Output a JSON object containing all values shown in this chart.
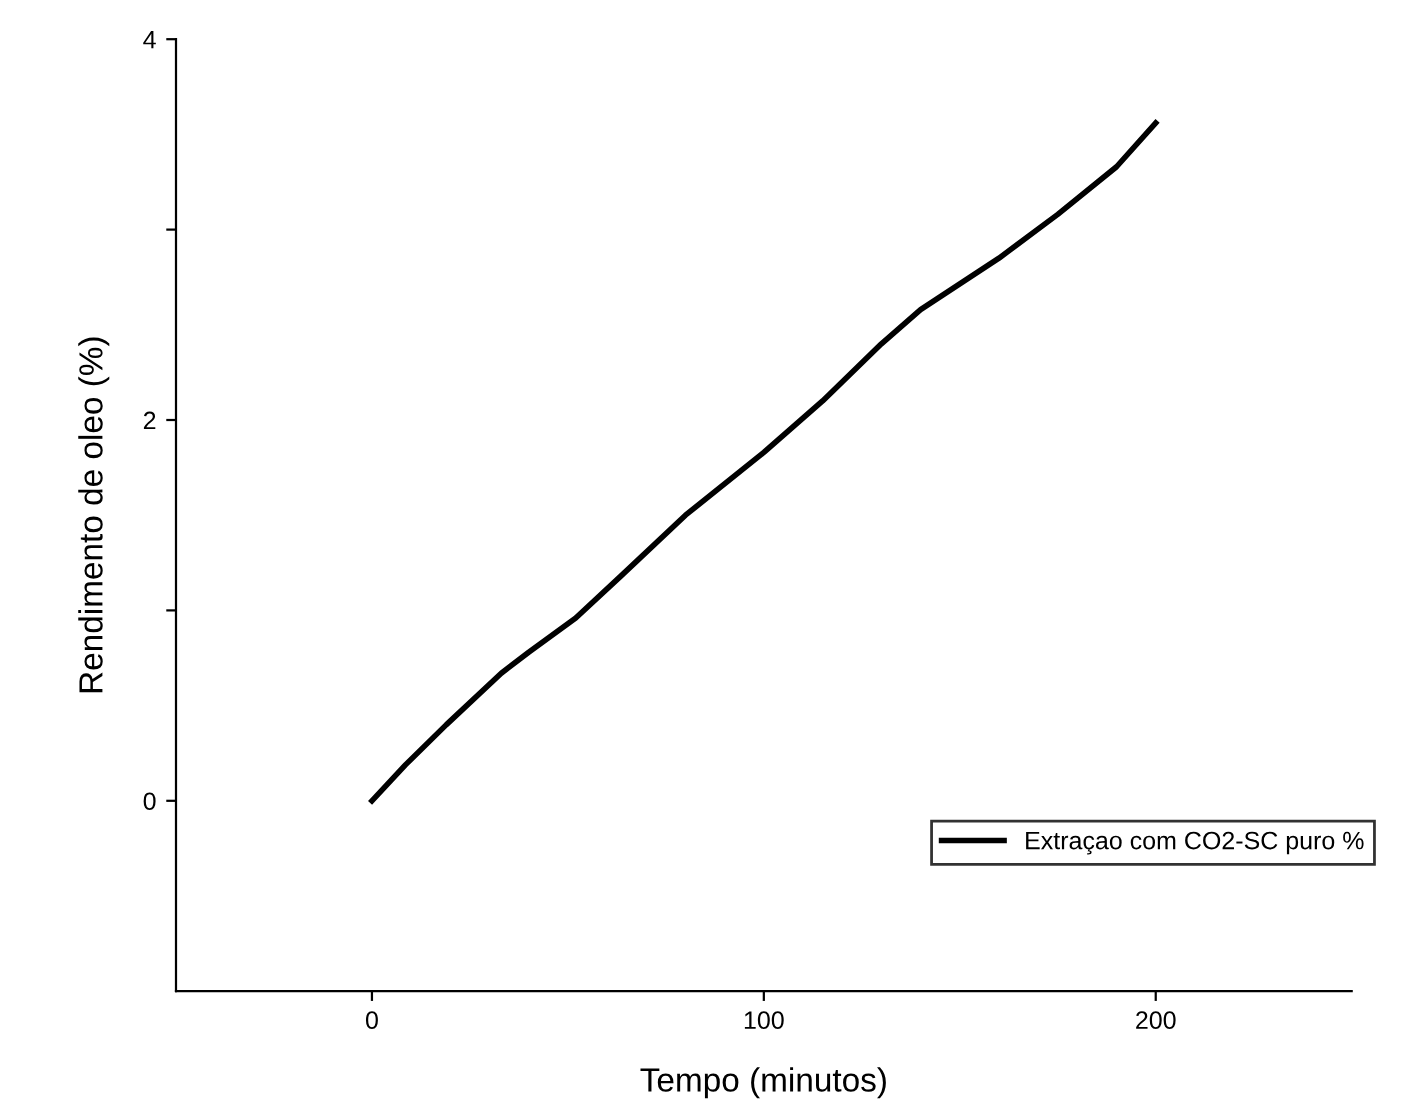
{
  "chart_data": {
    "type": "line",
    "xlabel": "Tempo (minutos)",
    "ylabel": "Rendimento de oleo (%)",
    "xlim": [
      -50,
      250
    ],
    "xticks": [
      0,
      100,
      200
    ],
    "ylim": [
      -1,
      4
    ],
    "yticks": [
      0,
      {
        "value": 1,
        "label": null
      },
      2,
      {
        "value": 3,
        "label": null
      },
      4
    ],
    "legend": "lower right",
    "marker": "none",
    "line_style": "solid",
    "grid": false,
    "series": [
      {
        "name": "Extraçao com CO2-SC puro %",
        "color": "#000000",
        "x": [
          0,
          8.6,
          19,
          33,
          40,
          52,
          63.5,
          80,
          100,
          115,
          130,
          140,
          160,
          175,
          190,
          200
        ],
        "values": [
          0,
          0.19,
          0.4,
          0.67,
          0.78,
          0.96,
          1.18,
          1.5,
          1.83,
          2.1,
          2.4,
          2.58,
          2.85,
          3.08,
          3.33,
          3.56
        ]
      }
    ]
  }
}
